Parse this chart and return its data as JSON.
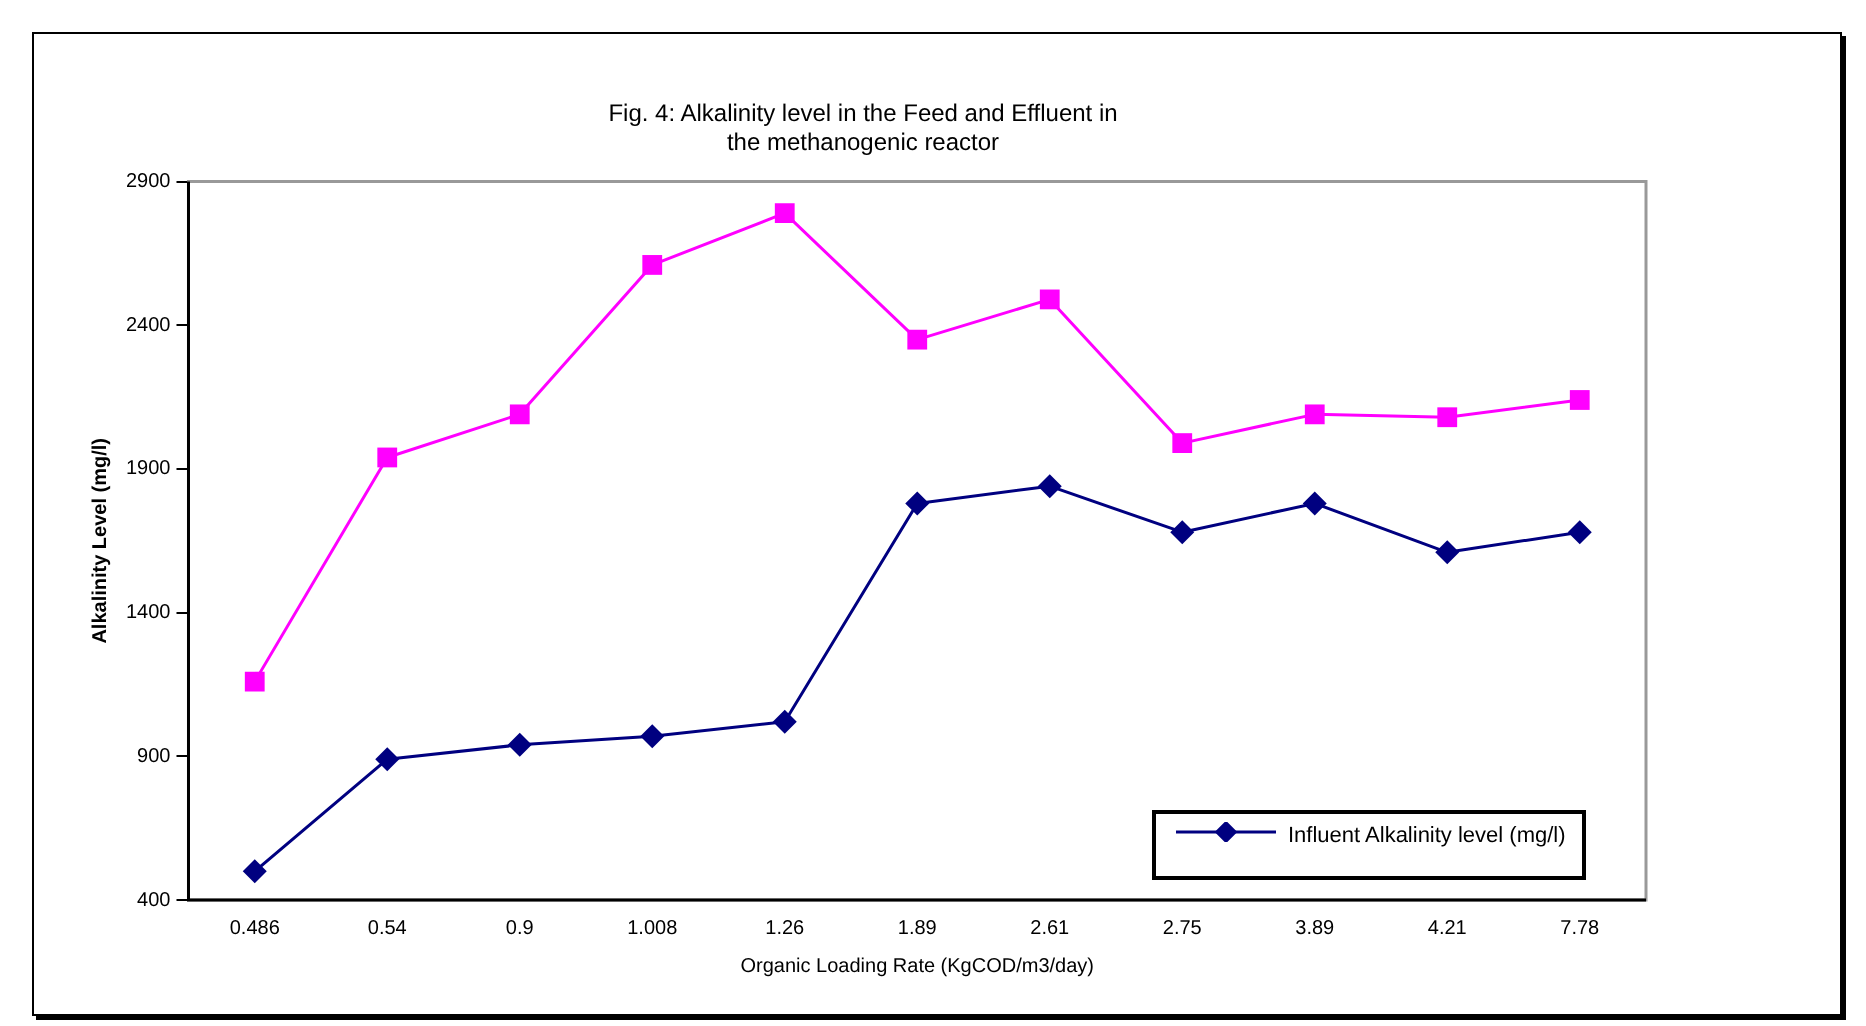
{
  "chart_data": {
    "type": "line",
    "title": "Fig. 4: Alkalinity level in the Feed and Effluent in the methanogenic reactor",
    "xlabel": "Organic Loading Rate (KgCOD/m3/day)",
    "ylabel": "Alkalinity Level (mg/l)",
    "categories": [
      "0.486",
      "0.54",
      "0.9",
      "1.008",
      "1.26",
      "1.89",
      "2.61",
      "2.75",
      "3.89",
      "4.21",
      "7.78"
    ],
    "series": [
      {
        "name": "Influent Alkalinity level (mg/l)",
        "color": "#000080",
        "marker": "diamond",
        "values": [
          500,
          890,
          940,
          970,
          1020,
          1780,
          1840,
          1680,
          1780,
          1610,
          1680
        ]
      },
      {
        "color": "#ff00ff",
        "marker": "square",
        "values": [
          1160,
          1940,
          2090,
          2610,
          2790,
          2350,
          2490,
          1990,
          2090,
          2080,
          2140
        ]
      }
    ],
    "ylim": [
      400,
      2900
    ],
    "yticks": [
      400,
      900,
      1400,
      1900,
      2400,
      2900
    ],
    "grid": false,
    "legend": "bottom right",
    "line_style": "solid"
  }
}
